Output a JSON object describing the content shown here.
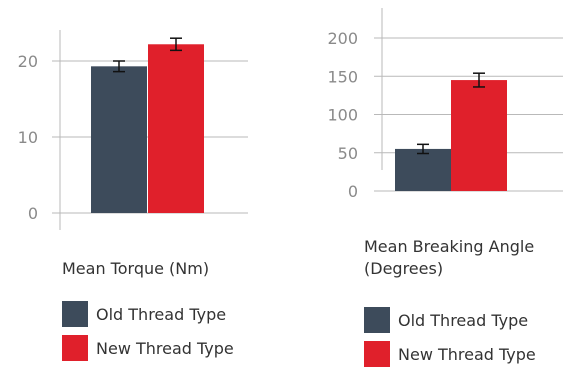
{
  "colors": {
    "old": "#3d4b5b",
    "new": "#e0202b",
    "grid": "#b9b9b9",
    "tick": "#8a8a8a",
    "errorbar": "#111111"
  },
  "chart_data": [
    {
      "type": "bar",
      "categories": [
        "Old Thread Type",
        "New Thread Type"
      ],
      "values": [
        19.3,
        22.2
      ],
      "errors": [
        0.7,
        0.8
      ],
      "ylim": [
        0,
        25
      ],
      "yticks": [
        0,
        10,
        20
      ],
      "xlabel": "Mean Torque (Nm)",
      "ylabel": "",
      "grid": true,
      "legend": {
        "placement": "bottom",
        "entries": [
          "Old Thread Type",
          "New Thread Type"
        ]
      }
    },
    {
      "type": "bar",
      "categories": [
        "Old Thread Type",
        "New Thread Type"
      ],
      "values": [
        55,
        145
      ],
      "errors": [
        6,
        9
      ],
      "ylim": [
        0,
        225
      ],
      "yticks": [
        0,
        50,
        100,
        150,
        200
      ],
      "xlabel": "Mean Breaking Angle (Degrees)",
      "ylabel": "",
      "grid": true,
      "legend": {
        "placement": "bottom",
        "entries": [
          "Old Thread Type",
          "New Thread Type"
        ]
      }
    }
  ]
}
